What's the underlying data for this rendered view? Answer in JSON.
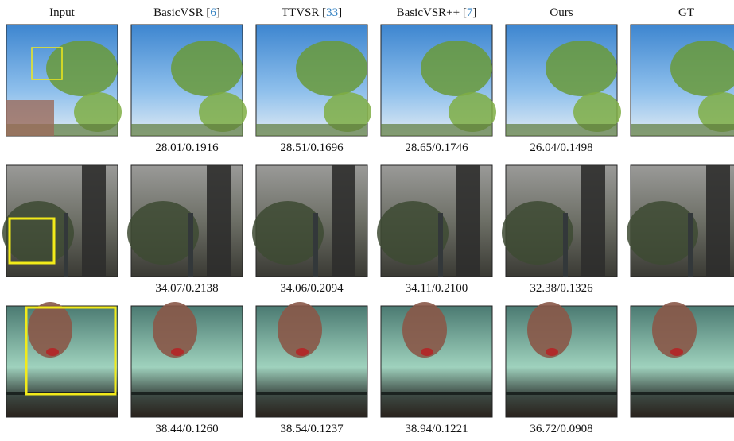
{
  "columns": [
    {
      "name": "Input"
    },
    {
      "name": "BasicVSR [",
      "ref": "6",
      "suffix": "]"
    },
    {
      "name": "TTVSR [",
      "ref": "33",
      "suffix": "]"
    },
    {
      "name": "BasicVSR++ [",
      "ref": "7",
      "suffix": "]"
    },
    {
      "name": "Ours"
    },
    {
      "name": "GT"
    }
  ],
  "rows": [
    {
      "metrics": [
        "28.01/0.1916",
        "28.51/0.1696",
        "28.65/0.1746",
        "26.04/0.1498"
      ]
    },
    {
      "metrics": [
        "34.07/0.2138",
        "34.06/0.2094",
        "34.11/0.2100",
        "32.38/0.1326"
      ]
    },
    {
      "metrics": [
        "38.44/0.1260",
        "38.54/0.1237",
        "38.94/0.1221",
        "36.72/0.0908"
      ]
    }
  ]
}
